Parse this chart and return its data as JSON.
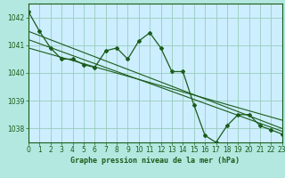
{
  "title": "Graphe pression niveau de la mer (hPa)",
  "background_color": "#b3e8e0",
  "plot_bg_color": "#cceeff",
  "grid_color": "#99ccbb",
  "line_color": "#1a5c1a",
  "xlim": [
    0,
    23
  ],
  "ylim": [
    1037.5,
    1042.5
  ],
  "yticks": [
    1038,
    1039,
    1040,
    1041,
    1042
  ],
  "xticks": [
    0,
    1,
    2,
    3,
    4,
    5,
    6,
    7,
    8,
    9,
    10,
    11,
    12,
    13,
    14,
    15,
    16,
    17,
    18,
    19,
    20,
    21,
    22,
    23
  ],
  "main_x": [
    0,
    1,
    2,
    3,
    4,
    5,
    6,
    7,
    8,
    9,
    10,
    11,
    12,
    13,
    14,
    15,
    16,
    17,
    18,
    19,
    20,
    21,
    22,
    23
  ],
  "main_y": [
    1042.2,
    1041.5,
    1040.9,
    1040.5,
    1040.5,
    1040.3,
    1040.2,
    1040.8,
    1040.9,
    1040.5,
    1041.15,
    1041.45,
    1040.9,
    1040.05,
    1040.05,
    1038.85,
    1037.75,
    1037.5,
    1038.1,
    1038.5,
    1038.5,
    1038.1,
    1037.95,
    1037.8
  ],
  "trend_lines": [
    {
      "x": [
        0,
        23
      ],
      "y": [
        1041.5,
        1038.0
      ]
    },
    {
      "x": [
        0,
        23
      ],
      "y": [
        1041.2,
        1037.9
      ]
    },
    {
      "x": [
        0,
        23
      ],
      "y": [
        1040.9,
        1038.3
      ]
    }
  ]
}
